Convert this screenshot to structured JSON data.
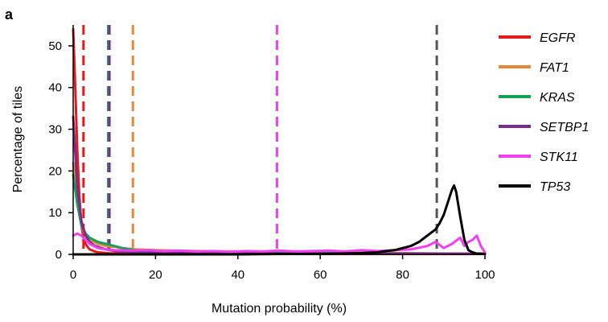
{
  "panel_label": "a",
  "chart_data": {
    "type": "line",
    "title": "",
    "xlabel": "Mutation probability (%)",
    "ylabel": "Percentage of tiles",
    "xlim": [
      0,
      100
    ],
    "ylim": [
      0,
      55
    ],
    "xticks": [
      "0",
      "20",
      "40",
      "60",
      "80",
      "100"
    ],
    "yticks": [
      "0",
      "10",
      "20",
      "30",
      "40",
      "50"
    ],
    "grid": false,
    "legend_position": "right",
    "series": [
      {
        "name": "EGFR",
        "color": "#e41a1c",
        "threshold": 2.5,
        "x": [
          0,
          0.5,
          1,
          1.5,
          2,
          2.5,
          3,
          3.5,
          4,
          5,
          6,
          8,
          10,
          15,
          20,
          30,
          40,
          50,
          60,
          70,
          80,
          90,
          100
        ],
        "y": [
          54,
          40,
          25,
          14,
          7,
          4,
          2.5,
          1.8,
          1.2,
          0.8,
          0.5,
          0.3,
          0.2,
          0.2,
          0.1,
          0.1,
          0.1,
          0.1,
          0.1,
          0.1,
          0.1,
          0.1,
          0.1
        ]
      },
      {
        "name": "FAT1",
        "color": "#e6873c",
        "threshold": 14.5,
        "x": [
          0,
          1,
          2,
          3,
          4,
          5,
          6,
          8,
          10,
          12,
          15,
          20,
          30,
          40,
          50,
          60,
          70,
          80,
          90,
          100
        ],
        "y": [
          22,
          13,
          7,
          4.5,
          3.5,
          3,
          2.5,
          2,
          1.8,
          1.5,
          1.2,
          1,
          0.8,
          0.7,
          0.6,
          0.5,
          0.4,
          0.3,
          0.2,
          0.2
        ]
      },
      {
        "name": "KRAS",
        "color": "#1b9e5a",
        "threshold": 8.5,
        "x": [
          0,
          1,
          2,
          3,
          4,
          5,
          6,
          8,
          10,
          12,
          15,
          20,
          30,
          40,
          50,
          60,
          70,
          80,
          90,
          100
        ],
        "y": [
          19,
          12,
          7,
          5,
          4,
          3.5,
          3,
          2.5,
          2,
          1.5,
          1,
          0.8,
          0.6,
          0.5,
          0.4,
          0.3,
          0.3,
          0.2,
          0.2,
          0.2
        ]
      },
      {
        "name": "SETBP1",
        "color": "#7b2d8b",
        "threshold": 8.8,
        "x": [
          0,
          1,
          2,
          3,
          4,
          5,
          6,
          8,
          10,
          15,
          20,
          30,
          40,
          50,
          60,
          70,
          80,
          90,
          100
        ],
        "y": [
          33,
          16,
          8,
          4.5,
          3,
          2.2,
          1.8,
          1.2,
          0.8,
          0.5,
          0.4,
          0.3,
          0.3,
          0.2,
          0.2,
          0.2,
          0.2,
          0.2,
          0.2
        ]
      },
      {
        "name": "STK11",
        "color": "#f040f0",
        "threshold": 49.5,
        "x": [
          0,
          1,
          2,
          3,
          4,
          5,
          6,
          8,
          10,
          14,
          18,
          22,
          26,
          30,
          34,
          38,
          42,
          46,
          50,
          54,
          58,
          62,
          66,
          70,
          74,
          78,
          82,
          86,
          88,
          90,
          92,
          94,
          95,
          96,
          97,
          98,
          99,
          100
        ],
        "y": [
          4.5,
          5,
          4.5,
          3.5,
          2.5,
          2,
          1.5,
          1.2,
          1,
          0.9,
          1,
          0.8,
          0.9,
          0.7,
          0.8,
          0.6,
          0.8,
          0.7,
          0.9,
          0.7,
          0.8,
          0.9,
          0.7,
          1.0,
          0.8,
          1.0,
          1.2,
          2.0,
          3.0,
          1.5,
          2.5,
          4.0,
          2.0,
          3.0,
          3.5,
          4.5,
          2.0,
          0.5
        ]
      },
      {
        "name": "TP53",
        "color": "#000000",
        "threshold": 88.3,
        "x": [
          0,
          5,
          10,
          20,
          30,
          40,
          50,
          60,
          65,
          70,
          74,
          76,
          78,
          80,
          82,
          84,
          86,
          88,
          89,
          90,
          91,
          92,
          92.5,
          93,
          94,
          95,
          96,
          97,
          98,
          100
        ],
        "y": [
          0,
          0,
          0,
          0,
          0,
          0,
          0.1,
          0.1,
          0.2,
          0.3,
          0.5,
          0.8,
          1.0,
          1.5,
          2.0,
          3.0,
          4.5,
          6.0,
          7.5,
          9.5,
          12.5,
          15.5,
          16.5,
          15,
          9,
          3.5,
          1.0,
          0.5,
          0.2,
          0.1
        ]
      }
    ]
  }
}
